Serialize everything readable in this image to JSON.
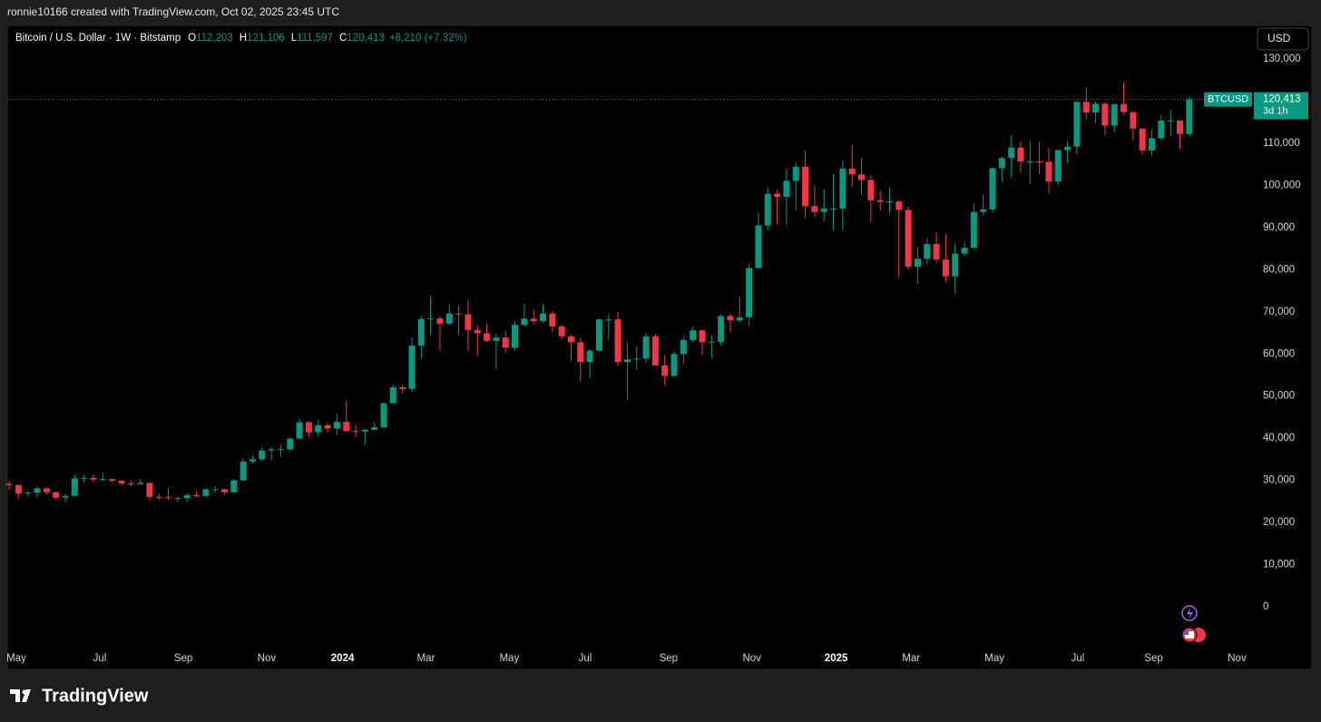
{
  "header": {
    "caption": "ronnie10166 created with TradingView.com, Oct 02, 2025 23:45 UTC"
  },
  "footer": {
    "brand": "TradingView"
  },
  "currency_button": "USD",
  "legend": {
    "title": "Bitcoin / U.S. Dollar · 1W · Bitstamp",
    "items": [
      {
        "key": "O",
        "value": "112,203"
      },
      {
        "key": "H",
        "value": "121,106"
      },
      {
        "key": "L",
        "value": "111,597"
      },
      {
        "key": "C",
        "value": "120,413"
      }
    ],
    "change": "+8,210 (+7.32%)"
  },
  "price_tag": {
    "symbol": "BTCUSD",
    "price": "120,413",
    "countdown": "3d 1h"
  },
  "chart_data": {
    "type": "candlestick",
    "up_color": "#089981",
    "down_color": "#f23645",
    "xlim": [
      -0.2,
      132.7
    ],
    "xticks": [
      {
        "value": 0.77,
        "label": "May"
      },
      {
        "value": 9.68,
        "label": "Jul"
      },
      {
        "value": 18.6,
        "label": "Sep"
      },
      {
        "value": 27.5,
        "label": "Nov"
      },
      {
        "value": 35.6,
        "label": "2024"
      },
      {
        "value": 44.5,
        "label": "Mar"
      },
      {
        "value": 53.4,
        "label": "May"
      },
      {
        "value": 61.5,
        "label": "Jul"
      },
      {
        "value": 70.4,
        "label": "Sep"
      },
      {
        "value": 79.3,
        "label": "Nov"
      },
      {
        "value": 88.3,
        "label": "2025"
      },
      {
        "value": 96.3,
        "label": "Mar"
      },
      {
        "value": 105.2,
        "label": "May"
      },
      {
        "value": 114.1,
        "label": "Jul"
      },
      {
        "value": 122.2,
        "label": "Sep"
      },
      {
        "value": 131.1,
        "label": "Nov"
      }
    ],
    "ylim": [
      -14850,
      137970
    ],
    "yticks": [
      0,
      {
        "value": 10000,
        "label": "10,000"
      },
      {
        "value": 20000,
        "label": "20,000"
      },
      {
        "value": 30000,
        "label": "30,000"
      },
      {
        "value": 40000,
        "label": "40,000"
      },
      {
        "value": 50000,
        "label": "50,000"
      },
      {
        "value": 60000,
        "label": "60,000"
      },
      {
        "value": 70000,
        "label": "70,000"
      },
      {
        "value": 80000,
        "label": "80,000"
      },
      {
        "value": 90000,
        "label": "90,000"
      },
      {
        "value": 100000,
        "label": "100,000"
      },
      {
        "value": 110000,
        "label": "110,000"
      },
      {
        "value": 120000,
        "label": "120,000"
      },
      {
        "value": 130000,
        "label": "130,000"
      }
    ],
    "grid": false,
    "series": {
      "open": [
        29200,
        28900,
        26900,
        27100,
        28100,
        27200,
        25900,
        26300,
        30500,
        30600,
        30200,
        30300,
        29900,
        29300,
        29100,
        29400,
        26100,
        26000,
        25800,
        25800,
        26500,
        26300,
        27900,
        27900,
        27200,
        30000,
        34500,
        35000,
        37100,
        37400,
        37400,
        39900,
        43800,
        41400,
        43100,
        42300,
        43900,
        41700,
        41600,
        42000,
        42600,
        48300,
        52100,
        51700,
        62000,
        68300,
        68400,
        67200,
        69600,
        69400,
        65700,
        64900,
        63100,
        63900,
        61500,
        66900,
        68400,
        67800,
        69600,
        66500,
        64200,
        62800,
        58100,
        60800,
        68200,
        68200,
        58100,
        58700,
        58900,
        64200,
        57300,
        54800,
        60000,
        63300,
        65600,
        62800,
        62900,
        69000,
        68000,
        68700,
        80400,
        90500,
        98000,
        97300,
        101100,
        104400,
        95100,
        93700,
        94500,
        94500,
        104000,
        102600,
        101300,
        96500,
        96100,
        96200,
        94200,
        80700,
        82600,
        86100,
        82400,
        78400,
        83800,
        85200,
        93700,
        94300,
        104100,
        106500,
        109000,
        105700,
        105700,
        105600,
        100900,
        108400,
        109200,
        119800,
        117300,
        119400,
        114200,
        119300,
        117400,
        113500,
        108300,
        111200,
        115400,
        115400,
        112203
      ],
      "high": [
        29900,
        29000,
        27600,
        28500,
        28400,
        27400,
        26800,
        31400,
        31300,
        31400,
        31800,
        30400,
        30000,
        29900,
        30200,
        29500,
        26800,
        28200,
        26100,
        27000,
        27500,
        28100,
        28600,
        28000,
        30400,
        35200,
        35900,
        37900,
        37900,
        38400,
        40200,
        44700,
        44000,
        44400,
        43600,
        45900,
        49000,
        43200,
        42200,
        43800,
        48500,
        52800,
        52500,
        64000,
        69000,
        73800,
        68900,
        71800,
        71300,
        72800,
        66900,
        67200,
        64700,
        65500,
        67700,
        71900,
        70600,
        71900,
        70100,
        67000,
        64500,
        63800,
        61100,
        68400,
        69400,
        70000,
        62700,
        61800,
        65000,
        64900,
        59800,
        60600,
        64100,
        66500,
        65600,
        64500,
        69400,
        69500,
        73600,
        81500,
        93500,
        99600,
        98900,
        104000,
        105400,
        108300,
        99900,
        99000,
        102700,
        106000,
        109600,
        106500,
        102500,
        98800,
        99500,
        96500,
        95000,
        85300,
        87500,
        88800,
        88500,
        86100,
        86500,
        95800,
        97900,
        104300,
        106800,
        111900,
        110400,
        110600,
        110500,
        108900,
        108500,
        110500,
        120000,
        123200,
        120000,
        119800,
        119300,
        124500,
        117600,
        113500,
        113400,
        116700,
        117900,
        115400,
        121106
      ],
      "low": [
        27700,
        25800,
        26300,
        26000,
        26600,
        25400,
        24800,
        26300,
        29500,
        29700,
        29900,
        29500,
        28800,
        28600,
        29000,
        25200,
        25400,
        25400,
        24900,
        24900,
        26000,
        26000,
        27200,
        26600,
        27100,
        29800,
        34100,
        34600,
        34800,
        35600,
        36700,
        39900,
        40200,
        40500,
        41400,
        40700,
        41500,
        40300,
        38500,
        41900,
        42300,
        48300,
        50600,
        50900,
        59000,
        64500,
        60800,
        66900,
        64500,
        60700,
        59700,
        62800,
        56500,
        60200,
        60700,
        66600,
        67100,
        67500,
        65100,
        63400,
        58400,
        53500,
        54300,
        60600,
        63500,
        57100,
        49100,
        56100,
        57800,
        57200,
        52600,
        54600,
        57500,
        62700,
        59800,
        58900,
        62000,
        65100,
        67500,
        66800,
        80200,
        89300,
        90800,
        90500,
        94200,
        92200,
        92600,
        91400,
        89300,
        89300,
        99600,
        97800,
        91200,
        94000,
        93500,
        78200,
        80000,
        76600,
        81200,
        81600,
        77100,
        74500,
        83100,
        85100,
        92900,
        93400,
        100800,
        102000,
        103000,
        100400,
        102700,
        98200,
        100100,
        105200,
        107500,
        115700,
        114700,
        112000,
        112700,
        116800,
        110600,
        107300,
        107300,
        110700,
        111700,
        108600,
        111597
      ],
      "close": [
        28900,
        26900,
        27100,
        28100,
        27200,
        25900,
        26300,
        30500,
        30600,
        30200,
        30300,
        29900,
        29300,
        29100,
        29400,
        26100,
        26000,
        25800,
        25800,
        26500,
        26300,
        27900,
        27900,
        27200,
        30000,
        34500,
        35000,
        37100,
        37400,
        37400,
        39900,
        43800,
        41400,
        43100,
        42300,
        43900,
        41700,
        41600,
        42000,
        42600,
        48300,
        52100,
        51700,
        62000,
        68300,
        68400,
        67200,
        69600,
        69400,
        65700,
        64900,
        63100,
        63900,
        61500,
        66900,
        68400,
        67800,
        69600,
        66500,
        64200,
        62800,
        58100,
        60800,
        68200,
        68200,
        58100,
        58700,
        58900,
        64200,
        57300,
        54800,
        60000,
        63300,
        65600,
        62800,
        62900,
        69000,
        68000,
        68700,
        80400,
        90500,
        98000,
        97300,
        101100,
        104400,
        95100,
        93700,
        94500,
        94500,
        104000,
        102600,
        101300,
        96500,
        96100,
        96200,
        94200,
        80700,
        82600,
        86100,
        82400,
        78400,
        83800,
        85200,
        93700,
        94300,
        104100,
        106500,
        109000,
        105700,
        105700,
        105600,
        100900,
        108400,
        109200,
        119800,
        117300,
        119400,
        114200,
        119300,
        117400,
        113500,
        108300,
        111200,
        115400,
        115400,
        112203,
        120413
      ]
    }
  }
}
